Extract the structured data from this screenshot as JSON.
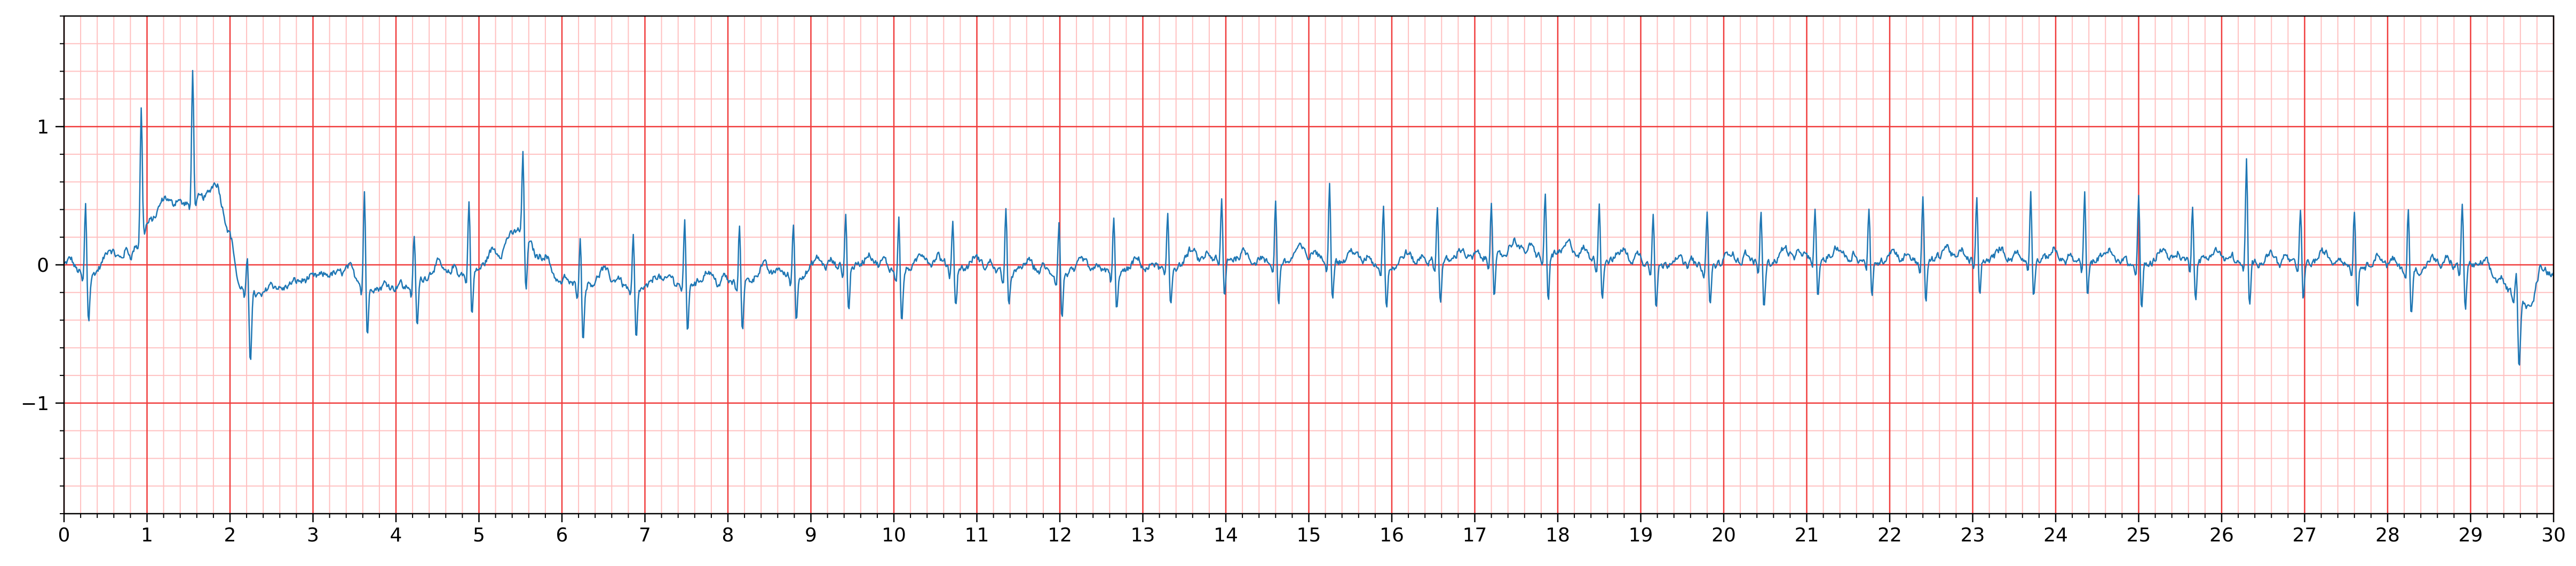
{
  "chart_data": {
    "type": "line",
    "title": "",
    "xlabel": "",
    "ylabel": "",
    "xlim": [
      0,
      30
    ],
    "ylim": [
      -1.8,
      1.8
    ],
    "x_ticks": [
      "0",
      "1",
      "2",
      "3",
      "4",
      "5",
      "6",
      "7",
      "8",
      "9",
      "10",
      "11",
      "12",
      "13",
      "14",
      "15",
      "16",
      "17",
      "18",
      "19",
      "20",
      "21",
      "22",
      "23",
      "24",
      "25",
      "26",
      "27",
      "28",
      "29",
      "30"
    ],
    "x_tick_values": [
      0,
      1,
      2,
      3,
      4,
      5,
      6,
      7,
      8,
      9,
      10,
      11,
      12,
      13,
      14,
      15,
      16,
      17,
      18,
      19,
      20,
      21,
      22,
      23,
      24,
      25,
      26,
      27,
      28,
      29,
      30
    ],
    "y_ticks": [
      "−1",
      "0",
      "1"
    ],
    "y_tick_values": [
      -1,
      0,
      1
    ],
    "grid": {
      "major": true,
      "minor": true,
      "x_major_step": 1,
      "x_minor_step": 0.2,
      "y_major_step": 1,
      "y_minor_step": 0.2,
      "major_color": "#f03c3c",
      "minor_color": "#ffc0c0"
    },
    "series": [
      {
        "color": "#1f77b4",
        "sample_rate_hz": 100,
        "beat_times_s": [
          0.26,
          0.93,
          1.55,
          2.21,
          3.62,
          4.22,
          4.88,
          5.53,
          6.22,
          6.86,
          7.48,
          8.14,
          8.79,
          9.42,
          10.06,
          10.71,
          11.35,
          11.99,
          12.65,
          13.3,
          13.95,
          14.6,
          15.25,
          15.9,
          16.55,
          17.2,
          17.85,
          18.5,
          19.15,
          19.8,
          20.45,
          21.1,
          21.75,
          22.4,
          23.05,
          23.7,
          24.35,
          25.0,
          25.65,
          26.3,
          26.95,
          27.6,
          28.25,
          28.9,
          29.55
        ],
        "r_amplitudes": [
          0.52,
          0.88,
          0.97,
          0.22,
          0.69,
          0.36,
          0.57,
          0.56,
          0.36,
          0.4,
          0.46,
          0.41,
          0.4,
          0.38,
          0.41,
          0.35,
          0.48,
          0.39,
          0.39,
          0.4,
          0.44,
          0.44,
          0.55,
          0.47,
          0.39,
          0.44,
          0.43,
          0.42,
          0.41,
          0.4,
          0.39,
          0.38,
          0.41,
          0.47,
          0.45,
          0.5,
          0.49,
          0.51,
          0.42,
          0.75,
          0.4,
          0.42,
          0.45,
          0.47,
          0.18
        ],
        "s_depths": [
          -0.32,
          -0.06,
          -0.05,
          -0.5,
          -0.38,
          -0.33,
          -0.31,
          -0.42,
          -0.4,
          -0.38,
          -0.36,
          -0.34,
          -0.34,
          -0.33,
          -0.38,
          -0.3,
          -0.27,
          -0.32,
          -0.3,
          -0.26,
          -0.29,
          -0.31,
          -0.27,
          -0.28,
          -0.3,
          -0.29,
          -0.35,
          -0.27,
          -0.32,
          -0.3,
          -0.33,
          -0.29,
          -0.28,
          -0.3,
          -0.27,
          -0.26,
          -0.28,
          -0.33,
          -0.29,
          -0.32,
          -0.26,
          -0.28,
          -0.36,
          -0.33,
          -0.48
        ],
        "baseline_points": [
          [
            0,
            0.0
          ],
          [
            0.3,
            -0.08
          ],
          [
            0.55,
            0.02
          ],
          [
            0.8,
            0.05
          ],
          [
            0.95,
            0.28
          ],
          [
            1.2,
            0.38
          ],
          [
            1.5,
            0.45
          ],
          [
            1.85,
            0.52
          ],
          [
            2.0,
            0.2
          ],
          [
            2.1,
            -0.15
          ],
          [
            2.4,
            -0.24
          ],
          [
            2.8,
            -0.12
          ],
          [
            3.4,
            -0.05
          ],
          [
            3.9,
            -0.22
          ],
          [
            4.4,
            -0.08
          ],
          [
            4.9,
            -0.07
          ],
          [
            5.25,
            0.05
          ],
          [
            5.5,
            0.3
          ],
          [
            5.7,
            0.05
          ],
          [
            6.0,
            -0.15
          ],
          [
            6.5,
            -0.12
          ],
          [
            7.0,
            -0.18
          ],
          [
            7.5,
            -0.12
          ],
          [
            8.0,
            -0.14
          ],
          [
            8.5,
            -0.08
          ],
          [
            9.0,
            -0.06
          ],
          [
            9.5,
            0.0
          ],
          [
            10.0,
            -0.04
          ],
          [
            10.5,
            0.0
          ],
          [
            11.0,
            -0.04
          ],
          [
            11.5,
            -0.05
          ],
          [
            12.0,
            -0.08
          ],
          [
            12.5,
            -0.04
          ],
          [
            13.0,
            -0.06
          ],
          [
            13.5,
            0.0
          ],
          [
            14.0,
            0.04
          ],
          [
            14.5,
            0.0
          ],
          [
            15.0,
            0.05
          ],
          [
            15.5,
            0.02
          ],
          [
            16.0,
            -0.02
          ],
          [
            16.5,
            0.02
          ],
          [
            17.0,
            0.03
          ],
          [
            17.5,
            0.08
          ],
          [
            18.0,
            0.08
          ],
          [
            18.5,
            0.03
          ],
          [
            19.0,
            0.02
          ],
          [
            19.5,
            -0.02
          ],
          [
            20.0,
            0.0
          ],
          [
            20.5,
            0.02
          ],
          [
            21.0,
            0.05
          ],
          [
            21.5,
            0.04
          ],
          [
            22.0,
            0.02
          ],
          [
            22.5,
            0.03
          ],
          [
            23.0,
            0.04
          ],
          [
            23.5,
            0.03
          ],
          [
            24.0,
            0.02
          ],
          [
            24.5,
            0.02
          ],
          [
            25.0,
            0.0
          ],
          [
            25.5,
            0.04
          ],
          [
            26.0,
            0.02
          ],
          [
            26.5,
            0.0
          ],
          [
            27.0,
            0.02
          ],
          [
            27.5,
            0.0
          ],
          [
            28.0,
            -0.02
          ],
          [
            28.5,
            -0.04
          ],
          [
            29.0,
            0.0
          ],
          [
            29.3,
            -0.12
          ],
          [
            29.6,
            -0.25
          ],
          [
            29.75,
            -0.32
          ],
          [
            29.85,
            -0.08
          ],
          [
            30.0,
            -0.05
          ]
        ],
        "noise_amplitude": 0.035
      }
    ]
  }
}
